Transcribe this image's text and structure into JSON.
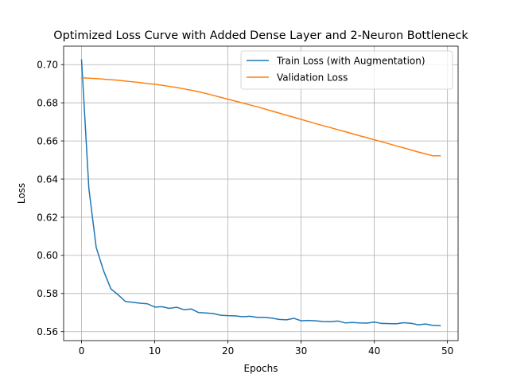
{
  "chart_data": {
    "type": "line",
    "title": "Optimized Loss Curve with Added Dense Layer and 2-Neuron Bottleneck",
    "xlabel": "Epochs",
    "ylabel": "Loss",
    "xlim": [
      -2.45,
      51.45
    ],
    "ylim": [
      0.5553,
      0.7097
    ],
    "xticks": [
      0,
      10,
      20,
      30,
      40,
      50
    ],
    "yticks": [
      0.56,
      0.58,
      0.6,
      0.62,
      0.64,
      0.66,
      0.68,
      0.7
    ],
    "ytick_labels": [
      "0.56",
      "0.58",
      "0.60",
      "0.62",
      "0.64",
      "0.66",
      "0.68",
      "0.70"
    ],
    "grid": true,
    "legend_position": "top-right",
    "x": [
      0,
      1,
      2,
      3,
      4,
      5,
      6,
      7,
      8,
      9,
      10,
      11,
      12,
      13,
      14,
      15,
      16,
      17,
      18,
      19,
      20,
      21,
      22,
      23,
      24,
      25,
      26,
      27,
      28,
      29,
      30,
      31,
      32,
      33,
      34,
      35,
      36,
      37,
      38,
      39,
      40,
      41,
      42,
      43,
      44,
      45,
      46,
      47,
      48,
      49
    ],
    "series": [
      {
        "name": "Train Loss (with Augmentation)",
        "color": "#1f77b4",
        "values": [
          0.7025,
          0.635,
          0.6042,
          0.592,
          0.5825,
          0.5793,
          0.5758,
          0.5754,
          0.5749,
          0.5746,
          0.5729,
          0.5731,
          0.5722,
          0.5728,
          0.5715,
          0.5719,
          0.57,
          0.5698,
          0.5695,
          0.5686,
          0.5684,
          0.5683,
          0.5678,
          0.5681,
          0.5675,
          0.5675,
          0.5671,
          0.5664,
          0.5662,
          0.567,
          0.5657,
          0.5659,
          0.5657,
          0.5653,
          0.5652,
          0.5656,
          0.5646,
          0.5648,
          0.5646,
          0.5645,
          0.565,
          0.5643,
          0.5642,
          0.5641,
          0.5647,
          0.5644,
          0.5636,
          0.564,
          0.5633,
          0.5632
        ]
      },
      {
        "name": "Validation Loss",
        "color": "#ff7f0e",
        "values": [
          0.6931,
          0.6929,
          0.6927,
          0.6924,
          0.6921,
          0.6918,
          0.6914,
          0.691,
          0.6906,
          0.6901,
          0.6897,
          0.6892,
          0.6886,
          0.688,
          0.6873,
          0.6866,
          0.6858,
          0.6849,
          0.6839,
          0.6829,
          0.6819,
          0.6809,
          0.6799,
          0.6789,
          0.6779,
          0.6768,
          0.6757,
          0.6746,
          0.6735,
          0.6724,
          0.6713,
          0.6702,
          0.6691,
          0.668,
          0.667,
          0.6659,
          0.6649,
          0.6638,
          0.6627,
          0.6617,
          0.6606,
          0.6596,
          0.6585,
          0.6574,
          0.6564,
          0.6553,
          0.6542,
          0.6532,
          0.6522,
          0.6522
        ]
      }
    ]
  }
}
